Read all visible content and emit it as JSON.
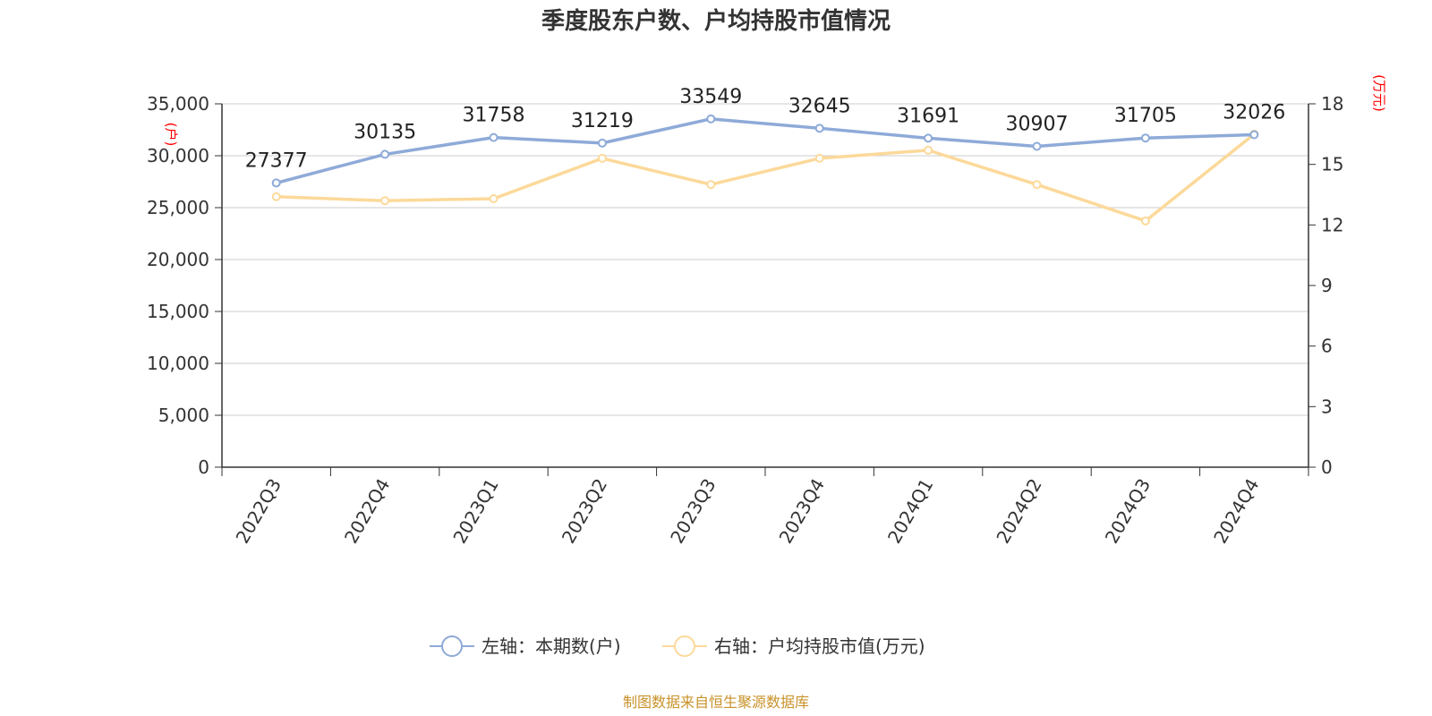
{
  "chart_data": {
    "type": "line",
    "title": "季度股东户数、户均持股市值情况",
    "categories": [
      "2022Q3",
      "2022Q4",
      "2023Q1",
      "2023Q2",
      "2023Q3",
      "2023Q4",
      "2024Q1",
      "2024Q2",
      "2024Q3",
      "2024Q4"
    ],
    "left_axis": {
      "unit": "(户)",
      "ylim": [
        0,
        35000
      ],
      "ticks": [
        0,
        5000,
        10000,
        15000,
        20000,
        25000,
        30000,
        35000
      ],
      "tick_labels": [
        "0",
        "5,000",
        "10,000",
        "15,000",
        "20,000",
        "25,000",
        "30,000",
        "35,000"
      ]
    },
    "right_axis": {
      "unit": "(万元)",
      "ylim": [
        0,
        18
      ],
      "ticks": [
        0,
        3,
        6,
        9,
        12,
        15,
        18
      ],
      "tick_labels": [
        "0",
        "3",
        "6",
        "9",
        "12",
        "15",
        "18"
      ]
    },
    "series": [
      {
        "name": "左轴：本期数(户)",
        "axis": "left",
        "color": "#8eaad8",
        "values": [
          27377,
          30135,
          31758,
          31219,
          33549,
          32645,
          31691,
          30907,
          31705,
          32026
        ],
        "data_labels": [
          "27377",
          "30135",
          "31758",
          "31219",
          "33549",
          "32645",
          "31691",
          "30907",
          "31705",
          "32026"
        ]
      },
      {
        "name": "右轴：户均持股市值(万元)",
        "axis": "right",
        "color": "#fcd99a",
        "values": [
          13.4,
          13.2,
          13.3,
          15.3,
          14.0,
          15.3,
          15.7,
          14.0,
          12.2,
          16.5
        ]
      }
    ],
    "grid": true,
    "legend": "bottom-center"
  },
  "source": "制图数据来自恒生聚源数据库"
}
